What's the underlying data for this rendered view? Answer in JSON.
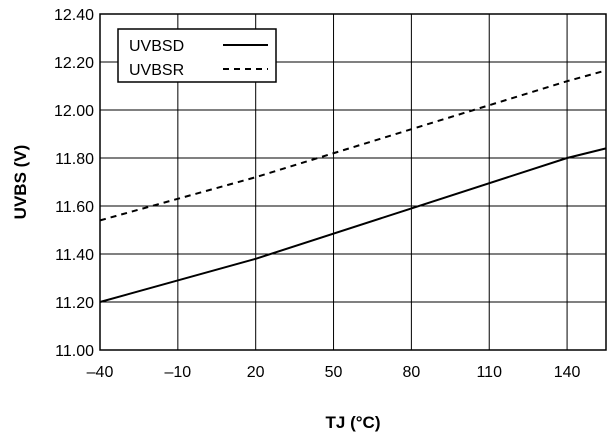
{
  "chart_data": {
    "type": "line",
    "title": "",
    "xlabel": "TJ (°C)",
    "ylabel": "UVBS (V)",
    "xlim": [
      -40,
      155
    ],
    "ylim": [
      11.0,
      12.4
    ],
    "x_ticks": [
      -40,
      -10,
      20,
      50,
      80,
      110,
      140
    ],
    "x_tick_labels": [
      "–40",
      "–10",
      "20",
      "50",
      "80",
      "110",
      "140"
    ],
    "y_ticks": [
      11.0,
      11.2,
      11.4,
      11.6,
      11.8,
      12.0,
      12.2,
      12.4
    ],
    "y_tick_labels": [
      "11.00",
      "11.20",
      "11.40",
      "11.60",
      "11.80",
      "12.00",
      "12.20",
      "12.40"
    ],
    "grid": true,
    "legend_position": "top-left",
    "series": [
      {
        "name": "UVBSD",
        "style": "solid",
        "color": "#000000",
        "x": [
          -40,
          20,
          80,
          140,
          155
        ],
        "y": [
          11.2,
          11.38,
          11.59,
          11.8,
          11.84
        ]
      },
      {
        "name": "UVBSR",
        "style": "dashed",
        "color": "#000000",
        "x": [
          -40,
          20,
          80,
          140,
          155
        ],
        "y": [
          11.54,
          11.72,
          11.92,
          12.12,
          12.165
        ]
      }
    ]
  }
}
